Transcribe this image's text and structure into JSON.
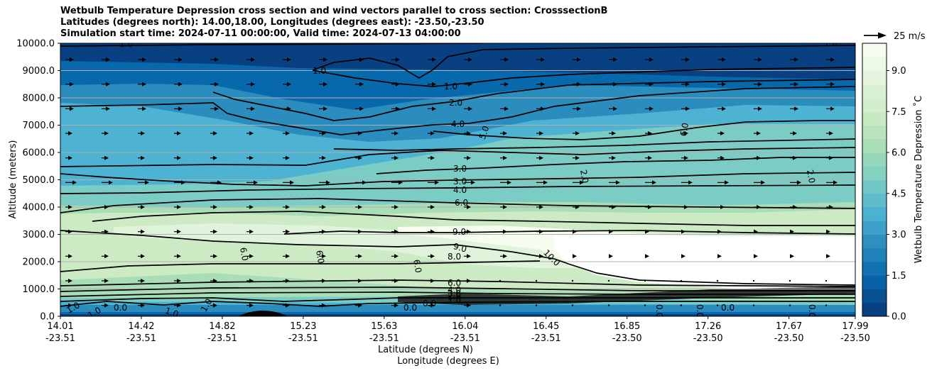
{
  "chart_data": {
    "type": "contourf",
    "title_lines": [
      "Wetbulb Temperature Depression cross section and wind vectors parallel to cross section: CrosssectionB",
      "Latitudes (degrees north): 14.00,18.00, Longitudes (degrees east): -23.50,-23.50",
      "Simulation start time: 2024-07-11 00:00:00, Valid time: 2024-07-13 04:00:00"
    ],
    "ylabel": "Altitude (meters)",
    "xlabel_lat": "Latitude (degrees N)",
    "xlabel_lon": "Longitude (degrees E)",
    "ylim": [
      0,
      10000
    ],
    "y_ticks": [
      "0.0",
      "1000.0",
      "2000.0",
      "3000.0",
      "4000.0",
      "5000.0",
      "6000.0",
      "7000.0",
      "8000.0",
      "9000.0",
      "10000.0"
    ],
    "x_ticks": [
      {
        "lat": "14.01",
        "lon": "-23.51"
      },
      {
        "lat": "14.42",
        "lon": "-23.51"
      },
      {
        "lat": "14.82",
        "lon": "-23.51"
      },
      {
        "lat": "15.23",
        "lon": "-23.51"
      },
      {
        "lat": "15.63",
        "lon": "-23.51"
      },
      {
        "lat": "16.04",
        "lon": "-23.51"
      },
      {
        "lat": "16.45",
        "lon": "-23.51"
      },
      {
        "lat": "16.85",
        "lon": "-23.50"
      },
      {
        "lat": "17.26",
        "lon": "-23.50"
      },
      {
        "lat": "17.67",
        "lon": "-23.50"
      },
      {
        "lat": "17.99",
        "lon": "-23.50"
      }
    ],
    "colorbar": {
      "label": "Wetbulb Temperature Depression ˚C",
      "min": 0.0,
      "max": 10.0,
      "ticks": [
        "0.0",
        "1.5",
        "3.0",
        "4.5",
        "6.0",
        "7.5",
        "9.0"
      ]
    },
    "quiver_key": {
      "label": "25 m/s"
    },
    "contour_labels": [
      "1.0",
      "1.0",
      "1.0",
      "2.0",
      "4.0",
      "5.0",
      "6.0",
      "2.0",
      "2.0",
      "3.0",
      "3.0",
      "4.0",
      "6.0",
      "9.0",
      "9.0",
      "8.0",
      "10.0",
      "6.0",
      "6.0",
      "6.0",
      "6.0",
      "4.0",
      "3.0",
      "2.0",
      "1.0",
      "0.0",
      "0.0",
      "0.0",
      "0.0",
      "0.0",
      "0.0",
      "0.0",
      "1.0",
      "1.0",
      "1.0",
      "1.0",
      "1.0"
    ],
    "colors": {
      "cmap": [
        "#084081",
        "#0868ac",
        "#2b8cbe",
        "#4eb3d3",
        "#7bccc4",
        "#a8ddb5",
        "#ccebc5",
        "#e0f3db",
        "#f7fcf0"
      ]
    }
  }
}
